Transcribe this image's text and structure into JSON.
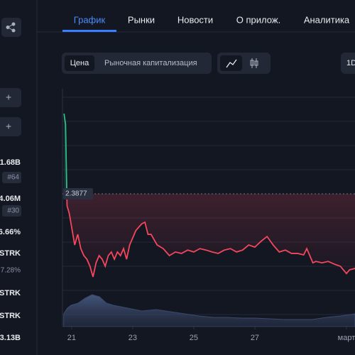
{
  "sidebar": {
    "stats": [
      "1.68B",
      "#64",
      "4.06M",
      "#30",
      "6.66%",
      "STRK",
      "7.28%",
      "STRK",
      "STRK",
      "3.13B"
    ]
  },
  "tabs": [
    "График",
    "Рынки",
    "Новости",
    "О прилож.",
    "Аналитика"
  ],
  "toggle": [
    "Цена",
    "Рыночная капитализация"
  ],
  "range_button": "1D",
  "chart_data": {
    "type": "line",
    "x": [
      20.75,
      20.8,
      20.85,
      20.92,
      21.0,
      21.1,
      21.2,
      21.3,
      21.4,
      21.5,
      21.6,
      21.7,
      21.8,
      21.9,
      22.0,
      22.1,
      22.2,
      22.3,
      22.4,
      22.5,
      22.6,
      22.7,
      22.8,
      22.9,
      23.0,
      23.1,
      23.2,
      23.3,
      23.4,
      23.5,
      23.6,
      23.8,
      24.0,
      24.2,
      24.4,
      24.6,
      24.8,
      25.0,
      25.2,
      25.4,
      25.6,
      25.8,
      26.0,
      26.2,
      26.4,
      26.6,
      26.8,
      27.0,
      27.2,
      27.4,
      27.6,
      27.8,
      28.0,
      28.2,
      28.4,
      28.6,
      28.7,
      28.8,
      28.9,
      29.0,
      29.2,
      29.4,
      29.6,
      29.8,
      30.0,
      30.1,
      30.28
    ],
    "series": [
      {
        "up_color": "#2ebd85",
        "down_color": "#f6465d",
        "values": [
          2.72,
          2.676,
          2.338,
          2.308,
          2.25,
          2.176,
          2.22,
          2.161,
          2.132,
          2.117,
          2.088,
          2.044,
          2.102,
          2.132,
          2.117,
          2.088,
          2.132,
          2.147,
          2.117,
          2.147,
          2.132,
          2.161,
          2.117,
          2.176,
          2.205,
          2.235,
          2.25,
          2.264,
          2.27,
          2.22,
          2.22,
          2.176,
          2.161,
          2.132,
          2.147,
          2.141,
          2.155,
          2.147,
          2.161,
          2.155,
          2.147,
          2.141,
          2.155,
          2.161,
          2.147,
          2.155,
          2.176,
          2.167,
          2.191,
          2.211,
          2.176,
          2.147,
          2.155,
          2.141,
          2.141,
          2.135,
          2.161,
          2.132,
          2.102,
          2.108,
          2.102,
          2.108,
          2.097,
          2.088,
          2.058,
          2.073,
          2.079
        ]
      }
    ],
    "reference": 2.3877,
    "volume": {
      "color": "#3a4a6b",
      "axis": "y2",
      "x": [
        20.74,
        20.86,
        20.98,
        21.21,
        21.44,
        21.67,
        21.91,
        22.14,
        22.37,
        22.84,
        23.3,
        23.77,
        24.23,
        24.7,
        25.16,
        25.63,
        26.09,
        26.56,
        27.02,
        27.49,
        27.95,
        28.42,
        28.88,
        29.35,
        29.81,
        30.28
      ],
      "values": [
        18,
        26,
        30,
        33,
        40,
        45,
        42,
        33,
        30,
        26,
        22,
        24,
        21,
        18,
        15,
        13,
        13,
        12,
        12,
        11,
        10,
        10,
        10,
        13,
        15,
        18
      ]
    },
    "xlim": [
      20.7,
      30.28
    ],
    "ylim": [
      1.838,
      2.823
    ],
    "y2lim": [
      0,
      100
    ],
    "xticks": [
      21,
      23,
      25,
      27,
      {
        "value": 30,
        "label": "март"
      }
    ]
  }
}
